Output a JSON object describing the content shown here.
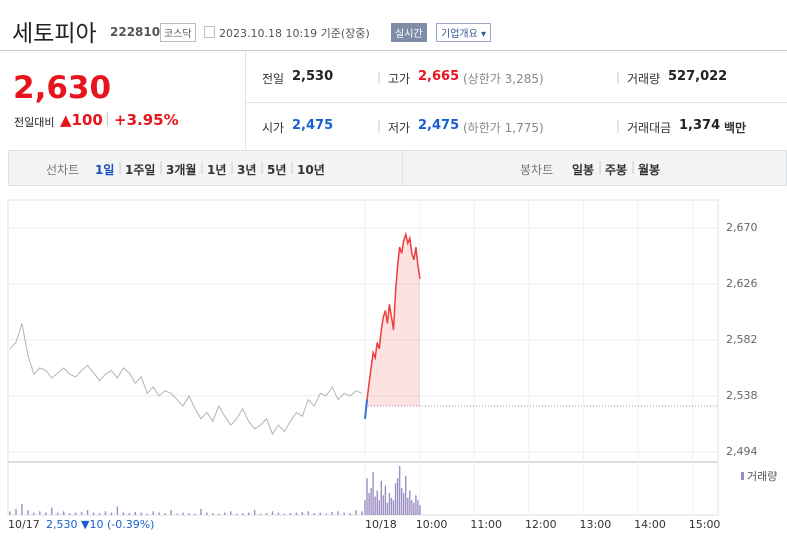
{
  "header": {
    "name": "세토피아",
    "code": "222810",
    "market": "코스닥",
    "timestamp": "2023.10.18 10:19 기준(장중)",
    "realtime_button": "실시간",
    "overview_button": "기업개요"
  },
  "quote": {
    "price": "2,630",
    "change_label": "전일대비",
    "change": "▲100",
    "change_percent": "+3.95%"
  },
  "stats": [
    {
      "label": "전일",
      "value": "2,530",
      "color": "#222222"
    },
    {
      "label": "고가",
      "value": "2,665",
      "note": "(상한가 3,285)",
      "color": "#e8141d"
    },
    {
      "label": "거래량",
      "value": "527,022",
      "color": "#222222"
    },
    {
      "label": "시가",
      "value": "2,475",
      "color": "#1a5fd1"
    },
    {
      "label": "저가",
      "value": "2,475",
      "note": "(하한가 1,775)",
      "color": "#1a5fd1"
    },
    {
      "label": "거래대금",
      "value": "1,374",
      "unit": "백만",
      "color": "#222222"
    }
  ],
  "tabs": {
    "line_label": "선차트",
    "periods": [
      "1일",
      "1주일",
      "3개월",
      "1년",
      "3년",
      "5년",
      "10년"
    ],
    "candle_label": "봉차트",
    "candles": [
      "일봉",
      "주봉",
      "월봉"
    ]
  },
  "chart_data": {
    "type": "line",
    "ylim": [
      2486,
      2692
    ],
    "yticks": [
      {
        "value": 2494,
        "label": "2,494"
      },
      {
        "value": 2538,
        "label": "2,538"
      },
      {
        "value": 2582,
        "label": "2,582"
      },
      {
        "value": 2626,
        "label": "2,626"
      },
      {
        "value": 2670,
        "label": "2,670"
      }
    ],
    "baseline": 2530,
    "series": [
      {
        "color": "#b4b4b4",
        "values": [
          2575,
          2580,
          2595,
          2570,
          2555,
          2560,
          2558,
          2552,
          2556,
          2560,
          2555,
          2553,
          2558,
          2562,
          2556,
          2550,
          2555,
          2558,
          2552,
          2560,
          2556,
          2548,
          2553,
          2540,
          2545,
          2538,
          2542,
          2540,
          2535,
          2530,
          2538,
          2528,
          2520,
          2525,
          2518,
          2530,
          2522,
          2515,
          2520,
          2528,
          2518,
          2512,
          2515,
          2520,
          2508,
          2515,
          2510,
          2518,
          2525,
          2522,
          2535,
          2530,
          2540,
          2538,
          2545,
          2535,
          2540,
          2538,
          2542,
          2540
        ]
      },
      {
        "color": "#f03c3c",
        "values": [
          2520,
          2535,
          2548,
          2560,
          2572,
          2568,
          2580,
          2575,
          2590,
          2600,
          2605,
          2595,
          2610,
          2600,
          2590,
          2620,
          2640,
          2655,
          2650,
          2660,
          2665,
          2658,
          2662,
          2650,
          2645,
          2655,
          2640,
          2630
        ]
      }
    ],
    "volume": {
      "name": "거래량",
      "color": "#9b8ec4",
      "values": [
        [
          3000,
          5000,
          9000,
          4000,
          2000,
          3000,
          2000,
          6000,
          2000,
          3000,
          1500,
          2000,
          2500,
          4000,
          2000,
          1500,
          3000,
          2000,
          7000,
          2000,
          1500,
          2500,
          2000,
          1000,
          3000,
          2000,
          1500,
          4000,
          1000,
          2000,
          1500,
          1000,
          5000,
          2000,
          1500,
          1000,
          2000,
          3000,
          1000,
          1500,
          2000,
          4000,
          1000,
          1500,
          3000,
          2000,
          1000,
          1500,
          2000,
          2500,
          3000,
          1500,
          2000,
          1000,
          2500,
          3000,
          2000,
          1500,
          4000,
          3000
        ],
        [
          12000,
          30000,
          18000,
          22000,
          35000,
          15000,
          20000,
          12000,
          28000,
          16000,
          24000,
          10000,
          18000,
          14000,
          12000,
          26000,
          30000,
          40000,
          22000,
          18000,
          32000,
          14000,
          20000,
          12000,
          10000,
          16000,
          12000,
          8000
        ]
      ]
    },
    "date_labels": [
      "10/17",
      "10/18"
    ],
    "time_labels": [
      "10:00",
      "11:00",
      "12:00",
      "13:00",
      "14:00",
      "15:00"
    ],
    "summary": "2,530 ▼10 (-0.39%)",
    "summary_color": "#1a5fd1"
  }
}
